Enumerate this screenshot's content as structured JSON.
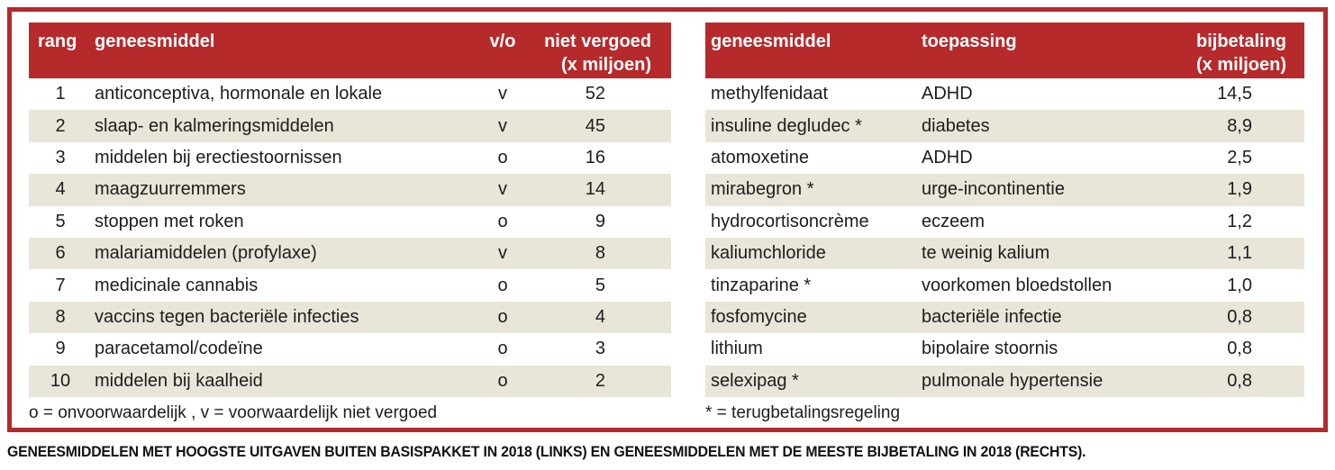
{
  "colors": {
    "accent_red": "#b62a2c",
    "row_beige": "#e9e5d9",
    "header_text": "#ffffff",
    "body_text": "#1d1d1b"
  },
  "left_table": {
    "headers": {
      "rank": "rang",
      "drug": "geneesmiddel",
      "vo": "v/o",
      "value_line1": "niet vergoed",
      "value_line2": "(x miljoen)"
    },
    "rows": [
      {
        "rank": "1",
        "drug": "anticonceptiva, hormonale en lokale",
        "vo": "v",
        "value": "52"
      },
      {
        "rank": "2",
        "drug": "slaap- en kalmeringsmiddelen",
        "vo": "v",
        "value": "45"
      },
      {
        "rank": "3",
        "drug": "middelen bij erectiestoornissen",
        "vo": "o",
        "value": "16"
      },
      {
        "rank": "4",
        "drug": "maagzuurremmers",
        "vo": "v",
        "value": "14"
      },
      {
        "rank": "5",
        "drug": "stoppen met roken",
        "vo": "o",
        "value": "9"
      },
      {
        "rank": "6",
        "drug": "malariamiddelen (profylaxe)",
        "vo": "v",
        "value": "8"
      },
      {
        "rank": "7",
        "drug": "medicinale cannabis",
        "vo": "o",
        "value": "5"
      },
      {
        "rank": "8",
        "drug": "vaccins tegen bacteriële infecties",
        "vo": "o",
        "value": "4"
      },
      {
        "rank": "9",
        "drug": "paracetamol/codeïne",
        "vo": "o",
        "value": "3"
      },
      {
        "rank": "10",
        "drug": "middelen bij kaalheid",
        "vo": "o",
        "value": "2"
      }
    ],
    "footnote": "o = onvoorwaardelijk , v = voorwaardelijk niet vergoed"
  },
  "right_table": {
    "headers": {
      "drug": "geneesmiddel",
      "use": "toepassing",
      "value_line1": "bijbetaling",
      "value_line2": "(x miljoen)"
    },
    "rows": [
      {
        "drug": "methylfenidaat",
        "use": "ADHD",
        "value": "14,5"
      },
      {
        "drug": "insuline degludec *",
        "use": "diabetes",
        "value": "8,9"
      },
      {
        "drug": "atomoxetine",
        "use": "ADHD",
        "value": "2,5"
      },
      {
        "drug": "mirabegron *",
        "use": "urge-incontinentie",
        "value": "1,9"
      },
      {
        "drug": "hydrocortisoncrème",
        "use": "eczeem",
        "value": "1,2"
      },
      {
        "drug": "kaliumchloride",
        "use": "te weinig kalium",
        "value": "1,1"
      },
      {
        "drug": "tinzaparine *",
        "use": "voorkomen bloedstollen",
        "value": "1,0"
      },
      {
        "drug": "fosfomycine",
        "use": "bacteriële infectie",
        "value": "0,8"
      },
      {
        "drug": "lithium",
        "use": "bipolaire stoornis",
        "value": "0,8"
      },
      {
        "drug": "selexipag *",
        "use": "pulmonale hypertensie",
        "value": "0,8"
      }
    ],
    "footnote": "* = terugbetalingsregeling"
  },
  "caption": "GENEESMIDDELEN MET HOOGSTE UITGAVEN BUITEN BASISPAKKET IN 2018 (LINKS) EN GENEESMIDDELEN MET DE MEESTE BIJBETALING IN 2018 (RECHTS).",
  "chart_data": [
    {
      "type": "table",
      "title": "Geneesmiddelen met hoogste uitgaven buiten basispakket in 2018",
      "columns": [
        "rang",
        "geneesmiddel",
        "v/o",
        "niet vergoed (x miljoen)"
      ],
      "rows": [
        [
          1,
          "anticonceptiva, hormonale en lokale",
          "v",
          52
        ],
        [
          2,
          "slaap- en kalmeringsmiddelen",
          "v",
          45
        ],
        [
          3,
          "middelen bij erectiestoornissen",
          "o",
          16
        ],
        [
          4,
          "maagzuurremmers",
          "v",
          14
        ],
        [
          5,
          "stoppen met roken",
          "o",
          9
        ],
        [
          6,
          "malariamiddelen (profylaxe)",
          "v",
          8
        ],
        [
          7,
          "medicinale cannabis",
          "o",
          5
        ],
        [
          8,
          "vaccins tegen bacteriële infecties",
          "o",
          4
        ],
        [
          9,
          "paracetamol/codeïne",
          "o",
          3
        ],
        [
          10,
          "middelen bij kaalheid",
          "o",
          2
        ]
      ],
      "footnote": "o = onvoorwaardelijk , v = voorwaardelijk niet vergoed"
    },
    {
      "type": "table",
      "title": "Geneesmiddelen met de meeste bijbetaling in 2018",
      "columns": [
        "geneesmiddel",
        "toepassing",
        "bijbetaling (x miljoen)"
      ],
      "rows": [
        [
          "methylfenidaat",
          "ADHD",
          14.5
        ],
        [
          "insuline degludec *",
          "diabetes",
          8.9
        ],
        [
          "atomoxetine",
          "ADHD",
          2.5
        ],
        [
          "mirabegron *",
          "urge-incontinentie",
          1.9
        ],
        [
          "hydrocortisoncrème",
          "eczeem",
          1.2
        ],
        [
          "kaliumchloride",
          "te weinig kalium",
          1.1
        ],
        [
          "tinzaparine *",
          "voorkomen bloedstollen",
          1.0
        ],
        [
          "fosfomycine",
          "bacteriële infectie",
          0.8
        ],
        [
          "lithium",
          "bipolaire stoornis",
          0.8
        ],
        [
          "selexipag *",
          "pulmonale hypertensie",
          0.8
        ]
      ],
      "footnote": "* = terugbetalingsregeling"
    }
  ]
}
